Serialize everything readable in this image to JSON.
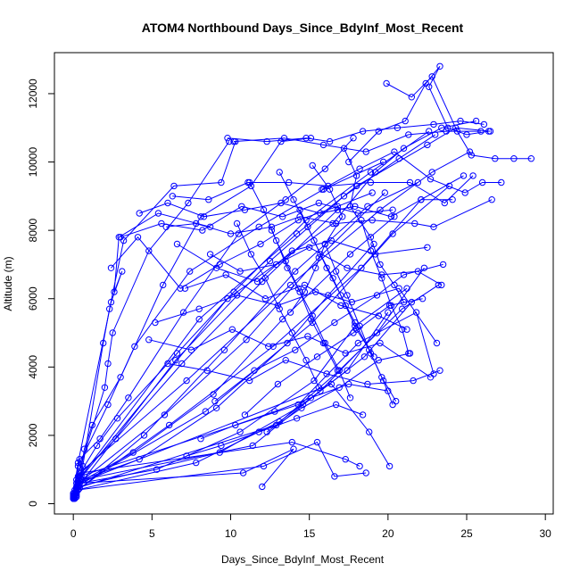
{
  "chart_data": {
    "type": "line",
    "title": "ATOM4 Northbound Days_Since_BdyInf_Most_Recent",
    "xlabel": "Days_Since_BdyInf_Most_Recent",
    "ylabel": "Altitude (m)",
    "xlim": [
      -1.2,
      30.5
    ],
    "ylim": [
      -300,
      13200
    ],
    "x_ticks": [
      0,
      5,
      10,
      15,
      20,
      25,
      30
    ],
    "y_ticks": [
      0,
      2000,
      4000,
      6000,
      8000,
      10000,
      12000
    ],
    "grid": false,
    "legend": "none",
    "marker": "open-circle",
    "series": [
      {
        "color": "#0000ff",
        "x": [
          0.1,
          0.2,
          9.8,
          16.5,
          19.2,
          21.0,
          23.4,
          25.6
        ],
        "y": [
          200,
          600,
          6000,
          8200,
          9700,
          10400,
          11000,
          11200
        ]
      },
      {
        "color": "#0000ff",
        "x": [
          0.1,
          0.5,
          8.0,
          14.2,
          18.0,
          22.5,
          24.3,
          26.5
        ],
        "y": [
          300,
          800,
          5400,
          7900,
          9300,
          10500,
          11000,
          10900
        ]
      },
      {
        "color": "#0000ff",
        "x": [
          0.0,
          0.3,
          6.5,
          12.5,
          17.2,
          20.7,
          23.0
        ],
        "y": [
          200,
          500,
          4200,
          7100,
          9000,
          10100,
          10800
        ]
      },
      {
        "color": "#0000ff",
        "x": [
          0.1,
          0.4,
          7.2,
          13.8,
          19.5,
          22.8,
          25.2
        ],
        "y": [
          400,
          900,
          3600,
          6400,
          8600,
          9700,
          10300
        ]
      },
      {
        "color": "#0000ff",
        "x": [
          0.0,
          0.6,
          5.8,
          11.0,
          15.6,
          19.8
        ],
        "y": [
          250,
          700,
          2600,
          4800,
          7200,
          9100
        ]
      },
      {
        "color": "#0000ff",
        "x": [
          0.1,
          0.2,
          4.5,
          9.6,
          14.1,
          18.7,
          21.9
        ],
        "y": [
          150,
          350,
          2000,
          4500,
          6800,
          8700,
          9400
        ]
      },
      {
        "color": "#0000ff",
        "x": [
          0.0,
          0.3,
          3.8,
          8.9,
          13.3,
          17.6,
          20.4
        ],
        "y": [
          200,
          600,
          1500,
          3200,
          5400,
          7300,
          8400
        ]
      },
      {
        "color": "#0000ff",
        "x": [
          0.2,
          0.5,
          2.7,
          6.9,
          12.0,
          16.8
        ],
        "y": [
          300,
          900,
          1900,
          4100,
          6500,
          8600
        ]
      },
      {
        "color": "#0000ff",
        "x": [
          0.1,
          0.4,
          6.1,
          12.7,
          18.3,
          22.1,
          24.8
        ],
        "y": [
          180,
          450,
          2300,
          4600,
          6900,
          8900,
          9600
        ]
      },
      {
        "color": "#0000ff",
        "x": [
          0.0,
          0.2,
          8.4,
          15.2,
          20.3,
          23.9
        ],
        "y": [
          220,
          500,
          2700,
          5300,
          7900,
          9300
        ]
      },
      {
        "color": "#0000ff",
        "x": [
          0.0,
          0.1,
          0.3,
          2.2,
          3.9,
          7.4,
          11.8,
          15.9,
          19.7
        ],
        "y": [
          150,
          400,
          1100,
          2900,
          4600,
          6800,
          8100,
          9200,
          10000
        ]
      },
      {
        "color": "#0000ff",
        "x": [
          0.1,
          0.3,
          1.5,
          2.8,
          6.6,
          10.2,
          14.8,
          18.9,
          22.6
        ],
        "y": [
          200,
          800,
          1700,
          2500,
          4400,
          6200,
          8300,
          9700,
          10900
        ]
      },
      {
        "color": "#0000ff",
        "x": [
          0.0,
          0.5,
          4.2,
          9.1,
          13.6,
          16.2,
          19.1
        ],
        "y": [
          300,
          700,
          1300,
          2800,
          4700,
          6100,
          7600
        ]
      },
      {
        "color": "#0000ff",
        "x": [
          0.2,
          0.4,
          5.3,
          10.6,
          15.3,
          17.9,
          21.2
        ],
        "y": [
          250,
          600,
          1000,
          2100,
          3600,
          5200,
          6300
        ]
      },
      {
        "color": "#0000ff",
        "x": [
          0.1,
          0.2,
          7.8,
          13.1,
          17.4,
          20.0
        ],
        "y": [
          200,
          400,
          1200,
          2400,
          3900,
          5600
        ]
      },
      {
        "color": "#0000ff",
        "x": [
          0.0,
          0.3,
          9.3,
          14.6,
          18.5,
          21.5
        ],
        "y": [
          180,
          500,
          1500,
          2900,
          4300,
          5900
        ]
      },
      {
        "color": "#0000ff",
        "x": [
          0.1,
          0.5,
          11.4,
          15.7,
          19.3,
          22.3
        ],
        "y": [
          200,
          700,
          1700,
          3300,
          5000,
          6900
        ]
      },
      {
        "color": "#0000ff",
        "x": [
          0.0,
          0.2,
          12.9,
          16.9,
          20.9,
          23.2
        ],
        "y": [
          150,
          450,
          2300,
          3900,
          5700,
          6400
        ]
      },
      {
        "color": "#0000ff",
        "x": [
          0.1,
          0.4,
          14.3,
          18.1,
          21.8,
          22.9
        ],
        "y": [
          250,
          800,
          2900,
          4700,
          5600,
          3800
        ]
      },
      {
        "color": "#0000ff",
        "x": [
          0.0,
          0.3,
          16.4,
          18.8,
          20.1
        ],
        "y": [
          200,
          600,
          3500,
          2100,
          1100
        ]
      },
      {
        "color": "#0000ff",
        "x": [
          0.1,
          0.5,
          13.9,
          17.3,
          18.2
        ],
        "y": [
          300,
          900,
          1800,
          1300,
          1100
        ]
      },
      {
        "color": "#0000ff",
        "x": [
          0.0,
          0.2,
          12.1,
          15.5,
          16.6,
          18.6
        ],
        "y": [
          150,
          400,
          1100,
          1800,
          800,
          900
        ]
      },
      {
        "color": "#0000ff",
        "x": [
          0.1,
          0.4,
          10.8,
          14.0,
          12.0
        ],
        "y": [
          200,
          600,
          900,
          1600,
          500
        ]
      },
      {
        "color": "#0000ff",
        "x": [
          0.0,
          0.3,
          2.4,
          3.1,
          2.6,
          2.9,
          5.4,
          8.7
        ],
        "y": [
          300,
          1200,
          5900,
          6800,
          6200,
          7800,
          8500,
          8100
        ]
      },
      {
        "color": "#0000ff",
        "x": [
          0.1,
          0.2,
          2.0,
          2.2,
          2.5,
          4.8,
          7.3,
          9.9
        ],
        "y": [
          250,
          700,
          3400,
          4100,
          5000,
          7400,
          8800,
          10600
        ]
      },
      {
        "color": "#0000ff",
        "x": [
          0.2,
          0.6,
          1.9,
          2.3,
          3.2,
          6.4,
          9.4,
          10.3
        ],
        "y": [
          200,
          1100,
          4700,
          5700,
          7700,
          9300,
          9400,
          10600
        ]
      },
      {
        "color": "#0000ff",
        "x": [
          0.3,
          0.7,
          1.2,
          3.0,
          5.7,
          8.1,
          11.3,
          13.2,
          15.1
        ],
        "y": [
          400,
          1600,
          2300,
          3700,
          6400,
          8400,
          9300,
          10600,
          10700
        ]
      },
      {
        "color": "#0000ff",
        "x": [
          0.0,
          0.4,
          1.7,
          3.5,
          7.0,
          10.5,
          13.5,
          16.0,
          17.8
        ],
        "y": [
          200,
          1300,
          1900,
          3100,
          5600,
          7900,
          8900,
          9800,
          10700
        ]
      },
      {
        "color": "#0000ff",
        "x": [
          9.8,
          12.3,
          14.8,
          16.3,
          18.4,
          20.6,
          22.9,
          24.6,
          26.1
        ],
        "y": [
          10700,
          10600,
          10700,
          10600,
          10900,
          11000,
          11100,
          11200,
          11100
        ]
      },
      {
        "color": "#0000ff",
        "x": [
          10.2,
          13.4,
          15.9,
          18.6,
          21.3,
          23.7,
          25.9
        ],
        "y": [
          10600,
          10700,
          10500,
          10300,
          10800,
          10900,
          10900
        ]
      },
      {
        "color": "#0000ff",
        "x": [
          17.5,
          19.4,
          21.1,
          22.4,
          23.3,
          22.6,
          23.8,
          25.0,
          26.4
        ],
        "y": [
          10000,
          10900,
          11200,
          12300,
          12800,
          12200,
          11000,
          10800,
          10900
        ]
      },
      {
        "color": "#0000ff",
        "x": [
          19.9,
          21.5,
          22.8,
          24.4,
          25.3,
          26.8,
          28.0,
          29.1
        ],
        "y": [
          12300,
          11900,
          12500,
          10900,
          10200,
          10100,
          10100,
          10100
        ]
      },
      {
        "color": "#0000ff",
        "x": [
          15.8,
          18.2,
          20.4,
          22.7,
          24.9,
          26.0,
          27.2
        ],
        "y": [
          9200,
          9800,
          10300,
          9500,
          9100,
          9400,
          9400
        ]
      },
      {
        "color": "#0000ff",
        "x": [
          6.3,
          8.6,
          11.1,
          13.7,
          16.2,
          18.9,
          21.4,
          23.6,
          25.4
        ],
        "y": [
          9000,
          8900,
          9400,
          9400,
          9300,
          9400,
          9400,
          8800,
          9600
        ]
      },
      {
        "color": "#0000ff",
        "x": [
          4.2,
          6.0,
          8.3,
          10.9,
          13.2,
          15.7,
          17.9,
          20.2,
          22.1,
          24.1
        ],
        "y": [
          8500,
          8800,
          8400,
          8600,
          8800,
          8500,
          8700,
          8400,
          8900,
          8900
        ]
      },
      {
        "color": "#0000ff",
        "x": [
          5.9,
          7.8,
          10.0,
          12.6,
          14.4,
          16.7,
          19.0,
          21.7,
          22.9,
          26.6
        ],
        "y": [
          8100,
          8200,
          7900,
          8100,
          8400,
          8200,
          8300,
          8200,
          8100,
          8900
        ]
      },
      {
        "color": "#0000ff",
        "x": [
          6.6,
          9.1,
          11.7,
          13.9,
          16.4,
          19.2,
          22.5
        ],
        "y": [
          7600,
          6900,
          6500,
          7400,
          7700,
          7300,
          7500
        ]
      },
      {
        "color": "#0000ff",
        "x": [
          8.7,
          10.6,
          12.9,
          15.0,
          17.4,
          19.6,
          21.9,
          23.4
        ],
        "y": [
          7300,
          6800,
          7000,
          7500,
          6900,
          6700,
          6800,
          6400
        ]
      },
      {
        "color": "#0000ff",
        "x": [
          7.1,
          9.7,
          12.2,
          14.7,
          17.0,
          19.4,
          21.2
        ],
        "y": [
          6300,
          6700,
          6000,
          6400,
          5800,
          5500,
          5100
        ]
      },
      {
        "color": "#0000ff",
        "x": [
          5.2,
          8.0,
          10.4,
          13.0,
          15.4,
          17.7,
          20.7,
          23.1
        ],
        "y": [
          5300,
          5700,
          6100,
          5800,
          6200,
          5900,
          6300,
          4700
        ]
      },
      {
        "color": "#0000ff",
        "x": [
          4.8,
          7.5,
          10.1,
          12.4,
          14.9,
          17.3,
          19.5,
          22.7
        ],
        "y": [
          4800,
          4500,
          5100,
          4600,
          4900,
          4400,
          4700,
          3700
        ]
      },
      {
        "color": "#0000ff",
        "x": [
          6.0,
          8.5,
          11.2,
          13.5,
          16.1,
          18.7,
          21.6,
          23.3
        ],
        "y": [
          4100,
          3900,
          3600,
          4200,
          3800,
          3500,
          3600,
          3900
        ]
      },
      {
        "color": "#0000ff",
        "x": [
          2.4,
          4.1,
          6.8,
          9.3,
          11.9,
          14.3,
          16.8,
          19.0
        ],
        "y": [
          6900,
          7800,
          6300,
          7000,
          7600,
          8300,
          8700,
          9100
        ]
      },
      {
        "color": "#0000ff",
        "x": [
          3.0,
          5.6,
          8.2,
          10.7,
          13.3,
          15.6,
          18.1,
          20.3
        ],
        "y": [
          7800,
          8200,
          8000,
          8700,
          8400,
          8800,
          8500,
          8600
        ]
      },
      {
        "color": "#0000ff",
        "x": [
          9.0,
          11.5,
          14.1,
          16.6,
          19.3,
          21.0,
          23.5
        ],
        "y": [
          3000,
          3900,
          4500,
          5300,
          6100,
          6700,
          7000
        ]
      },
      {
        "color": "#0000ff",
        "x": [
          10.9,
          13.0,
          15.5,
          17.8,
          20.1,
          22.2
        ],
        "y": [
          2600,
          3500,
          4300,
          5000,
          5800,
          6000
        ]
      },
      {
        "color": "#0000ff",
        "x": [
          12.3,
          14.5,
          16.9,
          19.4,
          21.4
        ],
        "y": [
          2100,
          2800,
          3400,
          4200,
          4400
        ]
      },
      {
        "color": "#0000ff",
        "x": [
          8.1,
          10.3,
          12.8,
          15.1,
          17.5,
          20.0
        ],
        "y": [
          1900,
          2300,
          2700,
          3100,
          3500,
          3300
        ]
      },
      {
        "color": "#0000ff",
        "x": [
          7.2,
          9.4,
          11.8,
          14.2,
          16.7,
          18.4
        ],
        "y": [
          1400,
          1700,
          2100,
          2500,
          2900,
          2600
        ]
      },
      {
        "color": "#0000ff",
        "x": [
          15.2,
          16.3,
          17.1,
          16.0,
          15.4,
          14.7,
          13.8
        ],
        "y": [
          9900,
          9200,
          8400,
          7600,
          6900,
          6200,
          5600
        ]
      },
      {
        "color": "#0000ff",
        "x": [
          17.2,
          18.0,
          17.6,
          18.9,
          19.5,
          20.4,
          21.0
        ],
        "y": [
          10400,
          9600,
          8700,
          7800,
          7000,
          6400,
          5900
        ]
      },
      {
        "color": "#0000ff",
        "x": [
          13.1,
          14.0,
          14.9,
          15.7,
          16.5,
          17.3,
          18.0,
          19.1
        ],
        "y": [
          9700,
          8900,
          8100,
          7300,
          6600,
          5800,
          5100,
          4300
        ]
      },
      {
        "color": "#0000ff",
        "x": [
          11.2,
          12.1,
          12.9,
          13.6,
          14.4,
          15.1,
          15.9,
          16.8
        ],
        "y": [
          9400,
          8600,
          7700,
          6900,
          6200,
          5400,
          4700,
          3900
        ]
      },
      {
        "color": "#0000ff",
        "x": [
          16.0,
          16.7,
          17.4,
          18.2,
          18.9,
          19.7,
          20.3
        ],
        "y": [
          7600,
          6800,
          6100,
          5200,
          4400,
          3600,
          2900
        ]
      },
      {
        "color": "#0000ff",
        "x": [
          18.3,
          18.9,
          19.6,
          20.2,
          20.9,
          21.3
        ],
        "y": [
          8300,
          7400,
          6600,
          5800,
          5100,
          4400
        ]
      },
      {
        "color": "#0000ff",
        "x": [
          14.4,
          15.3,
          16.1,
          17.0,
          17.9,
          18.8,
          19.6,
          20.5
        ],
        "y": [
          8600,
          7700,
          6900,
          6100,
          5300,
          4500,
          3700,
          3000
        ]
      },
      {
        "color": "#0000ff",
        "x": [
          12.6,
          13.5,
          14.3,
          15.2,
          16.0,
          16.9,
          17.6
        ],
        "y": [
          8000,
          7100,
          6300,
          5500,
          4700,
          3900,
          3100
        ]
      },
      {
        "color": "#0000ff",
        "x": [
          10.4,
          11.3,
          12.2,
          13.1,
          13.9,
          14.8,
          15.6
        ],
        "y": [
          8200,
          7300,
          6600,
          5700,
          5000,
          4200,
          3400
        ]
      }
    ]
  }
}
